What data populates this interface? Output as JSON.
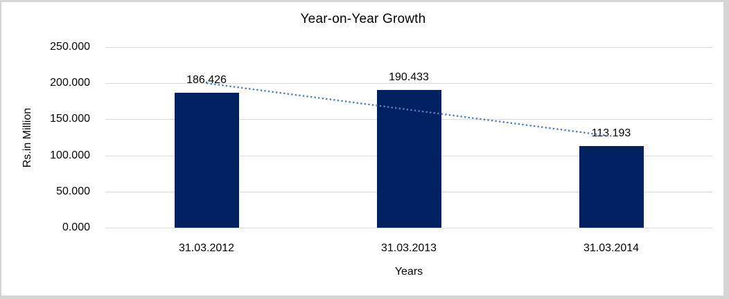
{
  "chart_data": {
    "type": "bar",
    "title": "Year-on-Year Growth",
    "xlabel": "Years",
    "ylabel": "Rs.in Million",
    "categories": [
      "31.03.2012",
      "31.03.2013",
      "31.03.2014"
    ],
    "values": [
      186.426,
      190.433,
      113.193
    ],
    "data_labels": [
      "186.426",
      "190.433",
      "113.193"
    ],
    "ylim": [
      0,
      250
    ],
    "yticks": [
      0,
      50,
      100,
      150,
      200,
      250
    ],
    "ytick_labels": [
      "0.000",
      "50.000",
      "100.000",
      "150.000",
      "200.000",
      "250.000"
    ],
    "grid": true,
    "legend_position": "none",
    "trendline": {
      "kind": "linear",
      "line_style": "dotted",
      "color": "#4f81bd"
    },
    "colors": {
      "bar": "#002060",
      "gridline": "#d9d9d9",
      "text": "#000000",
      "chart_border": "#d5d5d5",
      "background": "#ffffff"
    }
  }
}
